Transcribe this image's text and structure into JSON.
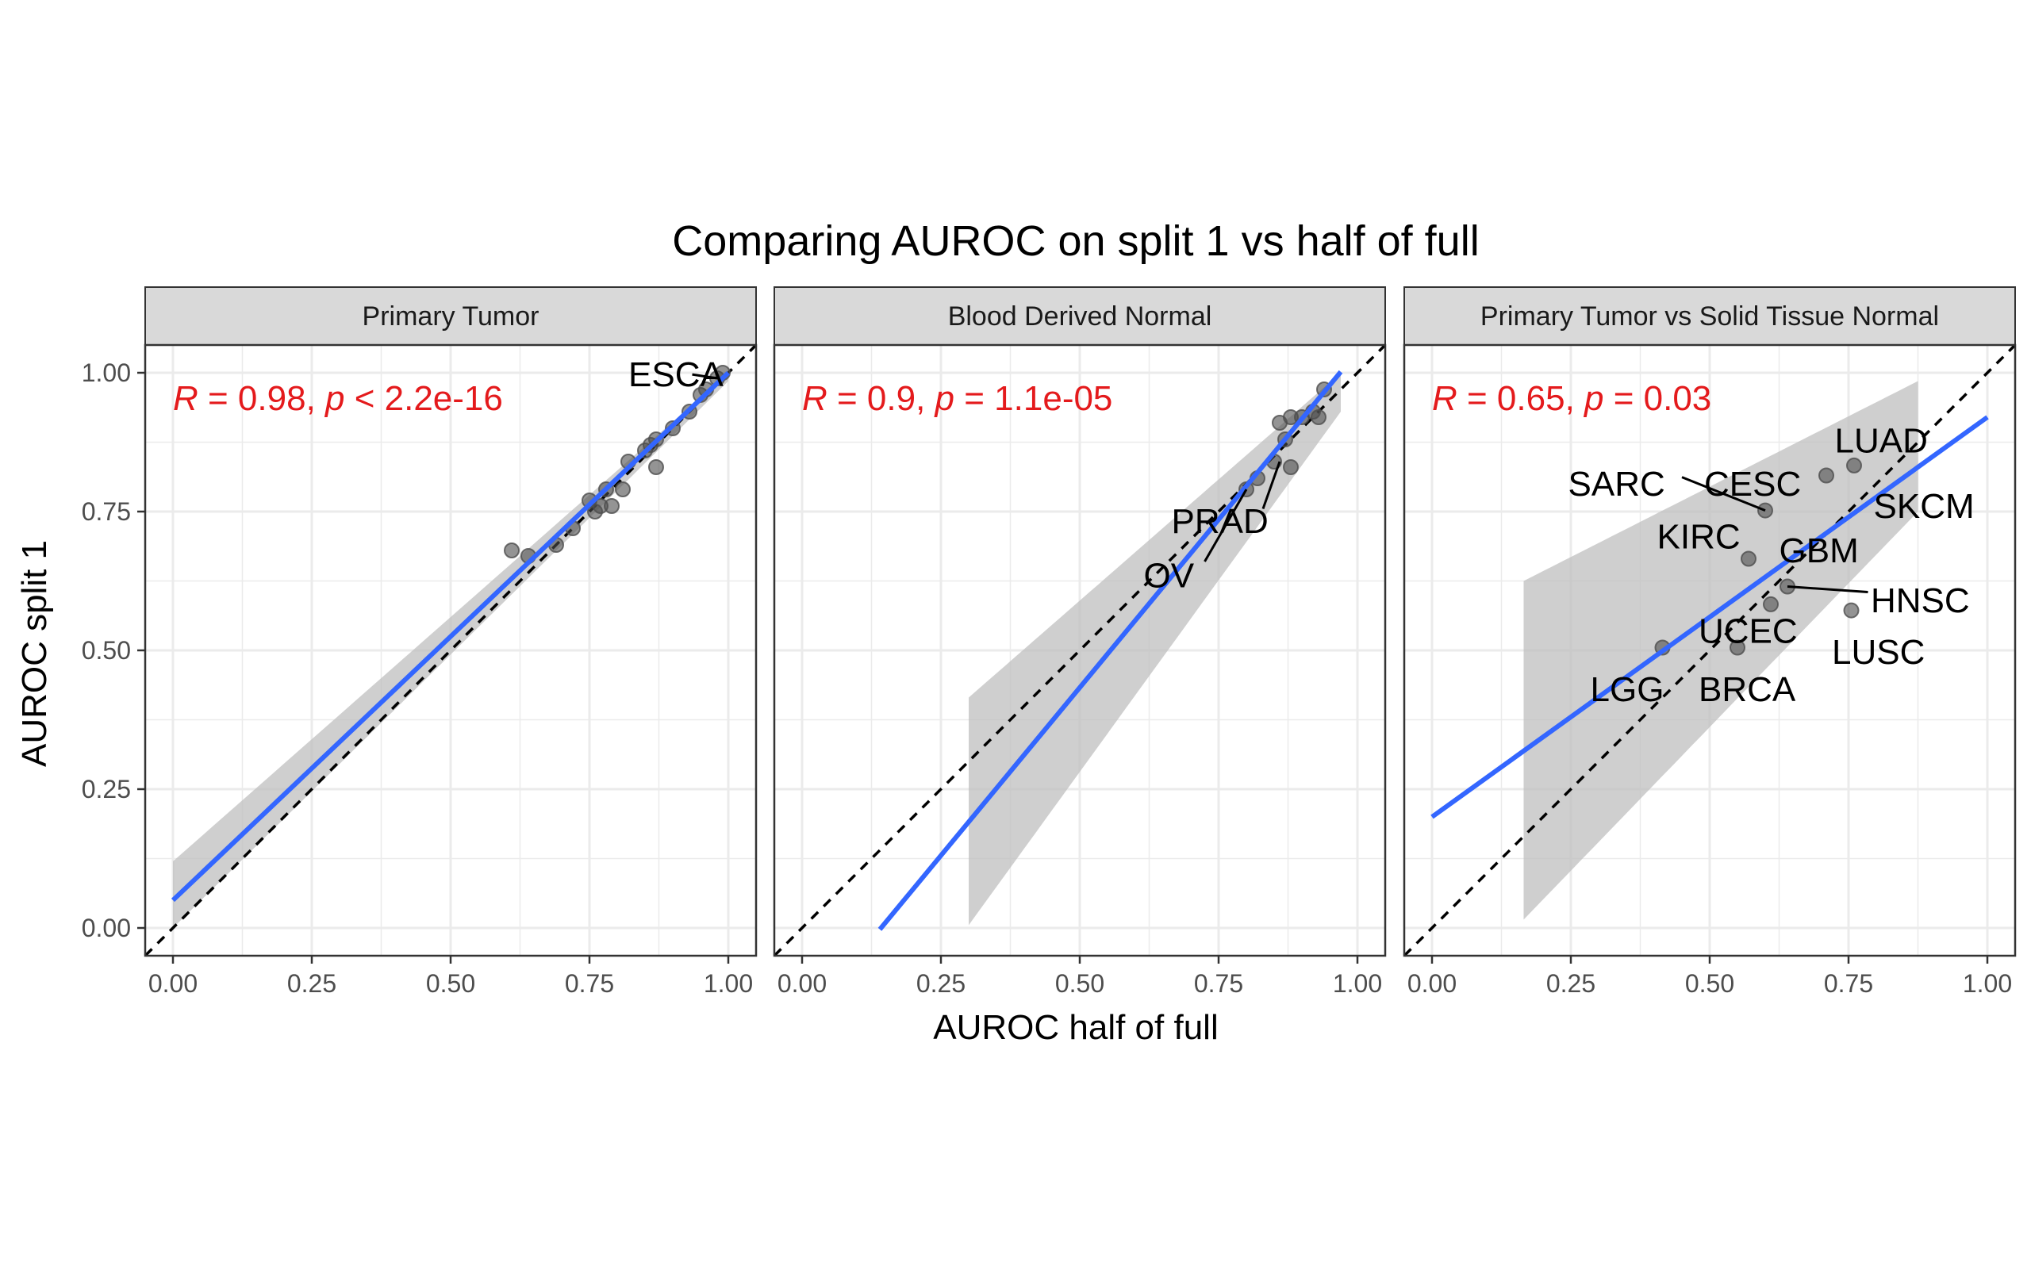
{
  "chart_data": {
    "type": "scatter",
    "title": "Comparing AUROC on split 1 vs half of full",
    "xlabel": "AUROC half of full",
    "ylabel": "AUROC split 1",
    "xlim": [
      -0.05,
      1.05
    ],
    "ylim": [
      -0.05,
      1.05
    ],
    "x_ticks": [
      "0.00",
      "0.25",
      "0.50",
      "0.75",
      "1.00"
    ],
    "y_ticks": [
      "0.00",
      "0.25",
      "0.50",
      "0.75",
      "1.00"
    ],
    "grid": true,
    "reference_line": "identity (dashed)",
    "colors": {
      "points": "#4d4d4d",
      "fit_line": "#3366ff",
      "ribbon": "#bfbfbf",
      "stat_text": "#e41a1c",
      "strip_bg": "#d9d9d9"
    },
    "panels": [
      {
        "strip": "Primary Tumor",
        "stat": {
          "r_label": "R",
          "r_text": " = 0.98, ",
          "p_label": "p",
          "p_text": " < 2.2e-16"
        },
        "fit": {
          "x_range": [
            0.0,
            1.0
          ],
          "intercept": 0.05,
          "slope": 0.95,
          "ci_lo": [
            0.0,
            0.985
          ],
          "ci_hi": [
            0.12,
            1.0
          ]
        },
        "points": [
          {
            "x": 0.61,
            "y": 0.68
          },
          {
            "x": 0.64,
            "y": 0.67
          },
          {
            "x": 0.69,
            "y": 0.69
          },
          {
            "x": 0.72,
            "y": 0.72
          },
          {
            "x": 0.75,
            "y": 0.77
          },
          {
            "x": 0.76,
            "y": 0.75
          },
          {
            "x": 0.77,
            "y": 0.76
          },
          {
            "x": 0.78,
            "y": 0.79
          },
          {
            "x": 0.79,
            "y": 0.76
          },
          {
            "x": 0.81,
            "y": 0.79
          },
          {
            "x": 0.82,
            "y": 0.84
          },
          {
            "x": 0.85,
            "y": 0.86
          },
          {
            "x": 0.86,
            "y": 0.87
          },
          {
            "x": 0.87,
            "y": 0.88
          },
          {
            "x": 0.87,
            "y": 0.83
          },
          {
            "x": 0.9,
            "y": 0.9
          },
          {
            "x": 0.93,
            "y": 0.93
          },
          {
            "x": 0.95,
            "y": 0.96
          },
          {
            "x": 0.96,
            "y": 0.97
          },
          {
            "x": 0.98,
            "y": 0.99
          },
          {
            "x": 0.99,
            "y": 1.0
          }
        ],
        "labels": [
          {
            "text": "ESCA",
            "x": 0.82,
            "y": 0.997,
            "anchor": "start",
            "lx": 0.935,
            "ly": 0.997,
            "px": 0.98,
            "py": 0.99
          }
        ]
      },
      {
        "strip": "Blood Derived Normal",
        "stat": {
          "r_label": "R",
          "r_text": " = 0.9, ",
          "p_label": "p",
          "p_text": " = 1.1e-05"
        },
        "fit": {
          "x_range": [
            0.14,
            0.97
          ],
          "intercept": -0.172,
          "slope": 1.21,
          "ci_lo": [
            0.005,
            0.93
          ],
          "ci_hi": [
            0.415,
            1.0
          ],
          "ci_x": [
            0.3,
            0.97
          ]
        },
        "points": [
          {
            "x": 0.8,
            "y": 0.79
          },
          {
            "x": 0.82,
            "y": 0.81
          },
          {
            "x": 0.85,
            "y": 0.84
          },
          {
            "x": 0.86,
            "y": 0.91
          },
          {
            "x": 0.87,
            "y": 0.88
          },
          {
            "x": 0.88,
            "y": 0.83
          },
          {
            "x": 0.88,
            "y": 0.92
          },
          {
            "x": 0.9,
            "y": 0.92
          },
          {
            "x": 0.92,
            "y": 0.93
          },
          {
            "x": 0.93,
            "y": 0.92
          },
          {
            "x": 0.94,
            "y": 0.97
          }
        ],
        "labels": [
          {
            "text": "PRAD",
            "x": 0.665,
            "y": 0.733,
            "anchor": "start",
            "lx": 0.83,
            "ly": 0.755,
            "px": 0.86,
            "py": 0.84
          },
          {
            "text": "OV",
            "x": 0.615,
            "y": 0.635,
            "anchor": "start",
            "lx": 0.725,
            "ly": 0.66,
            "px": 0.8,
            "py": 0.79
          }
        ]
      },
      {
        "strip": "Primary Tumor vs Solid Tissue Normal",
        "stat": {
          "r_label": "R",
          "r_text": " = 0.65, ",
          "p_label": "p",
          "p_text": " = 0.03"
        },
        "fit": {
          "x_range": [
            0.0,
            1.0
          ],
          "intercept": 0.2,
          "slope": 0.72,
          "ci_lo": [
            0.015,
            0.75
          ],
          "ci_hi": [
            0.625,
            0.985
          ],
          "ci_x": [
            0.165,
            0.875
          ]
        },
        "points": [
          {
            "x": 0.415,
            "y": 0.505
          },
          {
            "x": 0.55,
            "y": 0.505
          },
          {
            "x": 0.57,
            "y": 0.665
          },
          {
            "x": 0.6,
            "y": 0.752
          },
          {
            "x": 0.61,
            "y": 0.583
          },
          {
            "x": 0.64,
            "y": 0.615
          },
          {
            "x": 0.71,
            "y": 0.815
          },
          {
            "x": 0.755,
            "y": 0.572
          },
          {
            "x": 0.76,
            "y": 0.833
          }
        ],
        "labels": [
          {
            "text": "LUAD",
            "x": 0.725,
            "y": 0.878,
            "anchor": "start",
            "lx": null,
            "ly": null,
            "px": null,
            "py": null
          },
          {
            "text": "SARC",
            "x": 0.245,
            "y": 0.8,
            "anchor": "start",
            "lx": 0.45,
            "ly": 0.812,
            "px": 0.6,
            "py": 0.752
          },
          {
            "text": "CESC",
            "x": 0.49,
            "y": 0.8,
            "anchor": "start",
            "lx": null,
            "ly": null,
            "px": null,
            "py": null
          },
          {
            "text": "SKCM",
            "x": 0.795,
            "y": 0.76,
            "anchor": "start",
            "lx": null,
            "ly": null,
            "px": null,
            "py": null
          },
          {
            "text": "KIRC",
            "x": 0.405,
            "y": 0.705,
            "anchor": "start",
            "lx": null,
            "ly": null,
            "px": null,
            "py": null
          },
          {
            "text": "GBM",
            "x": 0.625,
            "y": 0.68,
            "anchor": "start",
            "lx": null,
            "ly": null,
            "px": null,
            "py": null
          },
          {
            "text": "HNSC",
            "x": 0.79,
            "y": 0.59,
            "anchor": "start",
            "lx": 0.785,
            "ly": 0.605,
            "px": 0.64,
            "py": 0.615
          },
          {
            "text": "UCEC",
            "x": 0.48,
            "y": 0.535,
            "anchor": "start",
            "lx": null,
            "ly": null,
            "px": null,
            "py": null
          },
          {
            "text": "LUSC",
            "x": 0.72,
            "y": 0.497,
            "anchor": "start",
            "lx": null,
            "ly": null,
            "px": null,
            "py": null
          },
          {
            "text": "LGG",
            "x": 0.285,
            "y": 0.43,
            "anchor": "start",
            "lx": null,
            "ly": null,
            "px": null,
            "py": null
          },
          {
            "text": "BRCA",
            "x": 0.48,
            "y": 0.43,
            "anchor": "start",
            "lx": null,
            "ly": null,
            "px": null,
            "py": null
          }
        ]
      }
    ]
  }
}
